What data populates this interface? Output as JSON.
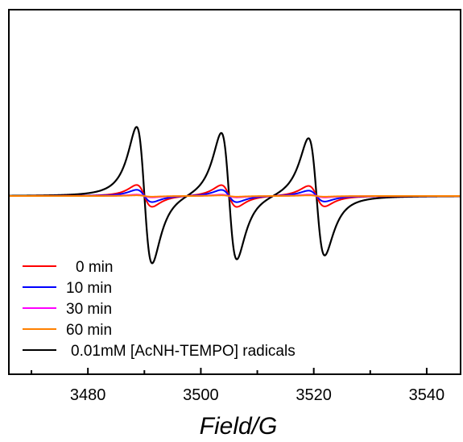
{
  "chart_data": {
    "type": "line",
    "title": "",
    "xlabel": "Field/G",
    "ylabel": "",
    "xlim": [
      3466,
      3546
    ],
    "ylim": [
      -1.1,
      1.15
    ],
    "xticks": [
      3480,
      3500,
      3520,
      3540
    ],
    "xtick_labels": [
      "3480",
      "3500",
      "3520",
      "3540"
    ],
    "y_ticks_shown": false,
    "grid": false,
    "legend_position": "bottom-left",
    "peaks": [
      {
        "center": 3490.0,
        "half_width": 2.4
      },
      {
        "center": 3505.0,
        "half_width": 2.4
      },
      {
        "center": 3520.5,
        "half_width": 2.5
      }
    ],
    "series": [
      {
        "name": "0 min",
        "color": "#ff0000",
        "peak_amplitudes": [
          0.16,
          0.16,
          0.15
        ]
      },
      {
        "name": "10 min",
        "color": "#0000ff",
        "peak_amplitudes": [
          0.09,
          0.09,
          0.08
        ]
      },
      {
        "name": "30 min",
        "color": "#ff00ff",
        "peak_amplitudes": [
          0.02,
          0.02,
          0.02
        ]
      },
      {
        "name": "60 min",
        "color": "#ff8000",
        "peak_amplitudes": [
          0.01,
          0.01,
          0.01
        ]
      },
      {
        "name": "0.01mM [AcNH-TEMPO] radicals",
        "color": "#000000",
        "peak_amplitudes": [
          1.0,
          0.93,
          0.86
        ]
      }
    ]
  }
}
